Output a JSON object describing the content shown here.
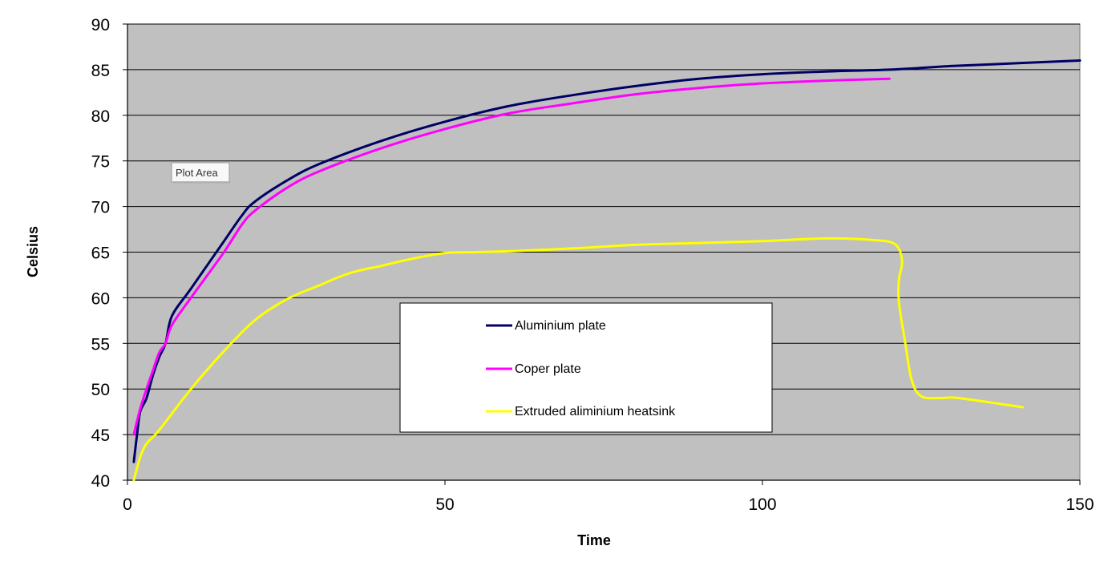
{
  "chart_data": {
    "type": "line",
    "title": "",
    "xlabel": "Time",
    "ylabel": "Celsius",
    "xlim": [
      0,
      150
    ],
    "ylim": [
      40,
      90
    ],
    "x_ticks": [
      0,
      50,
      100,
      150
    ],
    "y_ticks": [
      40,
      45,
      50,
      55,
      60,
      65,
      70,
      75,
      80,
      85,
      90
    ],
    "grid": "horizontal",
    "legend_position": "center",
    "plot_background": "#c0c0c0",
    "tooltip": "Plot Area",
    "series": [
      {
        "name": "Aluminium plate",
        "color": "#000066",
        "points": [
          [
            1,
            42
          ],
          [
            1.5,
            45
          ],
          [
            2,
            47.5
          ],
          [
            3,
            49
          ],
          [
            4,
            51.5
          ],
          [
            5,
            53.5
          ],
          [
            6,
            55
          ],
          [
            7,
            58
          ],
          [
            10,
            61
          ],
          [
            15,
            66
          ],
          [
            18,
            69
          ],
          [
            20,
            70.5
          ],
          [
            25,
            72.8
          ],
          [
            30,
            74.6
          ],
          [
            40,
            77.2
          ],
          [
            50,
            79.3
          ],
          [
            60,
            81
          ],
          [
            70,
            82.2
          ],
          [
            80,
            83.2
          ],
          [
            90,
            84
          ],
          [
            100,
            84.5
          ],
          [
            110,
            84.8
          ],
          [
            120,
            85
          ],
          [
            130,
            85.4
          ],
          [
            140,
            85.7
          ],
          [
            150,
            86
          ]
        ]
      },
      {
        "name": "Coper plate",
        "color": "#ff00ff",
        "points": [
          [
            1,
            45
          ],
          [
            2,
            47.8
          ],
          [
            3,
            50
          ],
          [
            4,
            52
          ],
          [
            5,
            54
          ],
          [
            6,
            55
          ],
          [
            7,
            57
          ],
          [
            10,
            60
          ],
          [
            15,
            64.8
          ],
          [
            18,
            68
          ],
          [
            20,
            69.5
          ],
          [
            25,
            72
          ],
          [
            30,
            73.8
          ],
          [
            40,
            76.4
          ],
          [
            50,
            78.5
          ],
          [
            60,
            80.2
          ],
          [
            70,
            81.3
          ],
          [
            80,
            82.3
          ],
          [
            90,
            83
          ],
          [
            100,
            83.5
          ],
          [
            110,
            83.8
          ],
          [
            120,
            84
          ]
        ]
      },
      {
        "name": "Extruded aliminium heatsink",
        "color": "#ffff00",
        "points": [
          [
            1,
            40
          ],
          [
            2,
            42.5
          ],
          [
            3,
            44
          ],
          [
            5,
            45.5
          ],
          [
            10,
            50
          ],
          [
            15,
            54
          ],
          [
            20,
            57.5
          ],
          [
            25,
            59.8
          ],
          [
            30,
            61.3
          ],
          [
            35,
            62.7
          ],
          [
            40,
            63.5
          ],
          [
            45,
            64.3
          ],
          [
            50,
            64.9
          ],
          [
            55,
            65
          ],
          [
            60,
            65.1
          ],
          [
            70,
            65.4
          ],
          [
            80,
            65.8
          ],
          [
            90,
            66
          ],
          [
            100,
            66.2
          ],
          [
            110,
            66.5
          ],
          [
            118,
            66.3
          ],
          [
            121,
            65.8
          ],
          [
            122,
            64
          ],
          [
            121.5,
            62
          ],
          [
            121.5,
            59.5
          ],
          [
            122.5,
            55
          ],
          [
            123.5,
            51
          ],
          [
            125,
            49.2
          ],
          [
            128,
            49
          ],
          [
            131,
            49
          ],
          [
            141,
            48
          ]
        ]
      }
    ]
  }
}
